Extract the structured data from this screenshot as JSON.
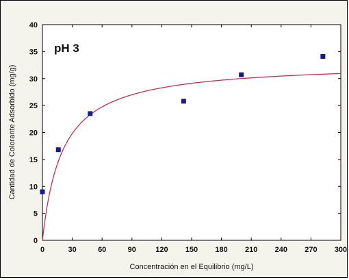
{
  "chart_data": {
    "type": "scatter",
    "annotation": "pH 3",
    "xlabel": "Concentración en el Equilibrio (mg/L)",
    "ylabel": "Cantidad de Colorante Adsorbido (mg/g)",
    "xlim": [
      0,
      300
    ],
    "ylim": [
      0,
      40
    ],
    "xticks": [
      0,
      30,
      60,
      90,
      120,
      150,
      180,
      210,
      240,
      270,
      300
    ],
    "yticks": [
      0,
      5,
      10,
      15,
      20,
      25,
      30,
      35,
      40
    ],
    "grid": false,
    "points": [
      {
        "x": 0,
        "y": 9
      },
      {
        "x": 16,
        "y": 16.8
      },
      {
        "x": 48,
        "y": 23.5
      },
      {
        "x": 142,
        "y": 25.8
      },
      {
        "x": 200,
        "y": 30.7
      },
      {
        "x": 282,
        "y": 34.1
      }
    ],
    "fit": {
      "model": "langmuir",
      "qmax": 33,
      "K": 0.05
    },
    "colors": {
      "points": "#1a1a8c",
      "fit": "#c0304a",
      "panel": "#f4f3ec"
    }
  }
}
